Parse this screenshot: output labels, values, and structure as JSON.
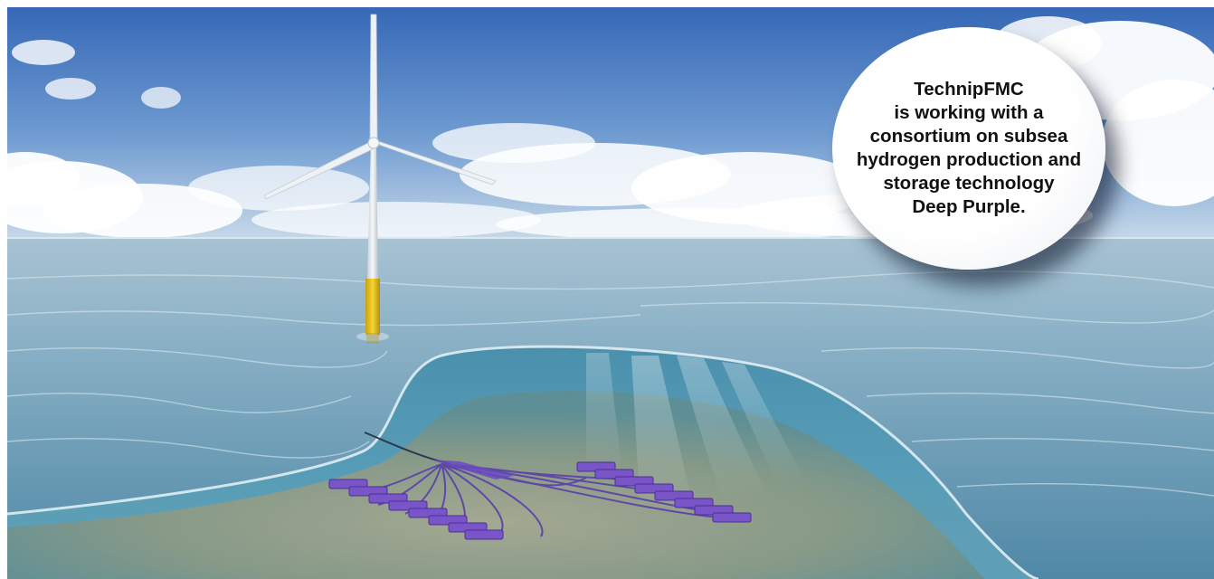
{
  "caption": {
    "lines": [
      "TechnipFMC",
      "is working with a",
      "consortium on subsea",
      "hydrogen production and",
      "storage technology",
      "Deep Purple."
    ]
  },
  "colors": {
    "sky_top": "#3f74bf",
    "sky_horizon": "#bcd3e6",
    "sea_far": "#8fb4c9",
    "sea_near": "#5f93ae",
    "seabed": "#8d9a82",
    "turbine_tower": "#e8ecef",
    "turbine_foundation": "#e3c21a",
    "subsea_modules": "#7a55c8"
  }
}
